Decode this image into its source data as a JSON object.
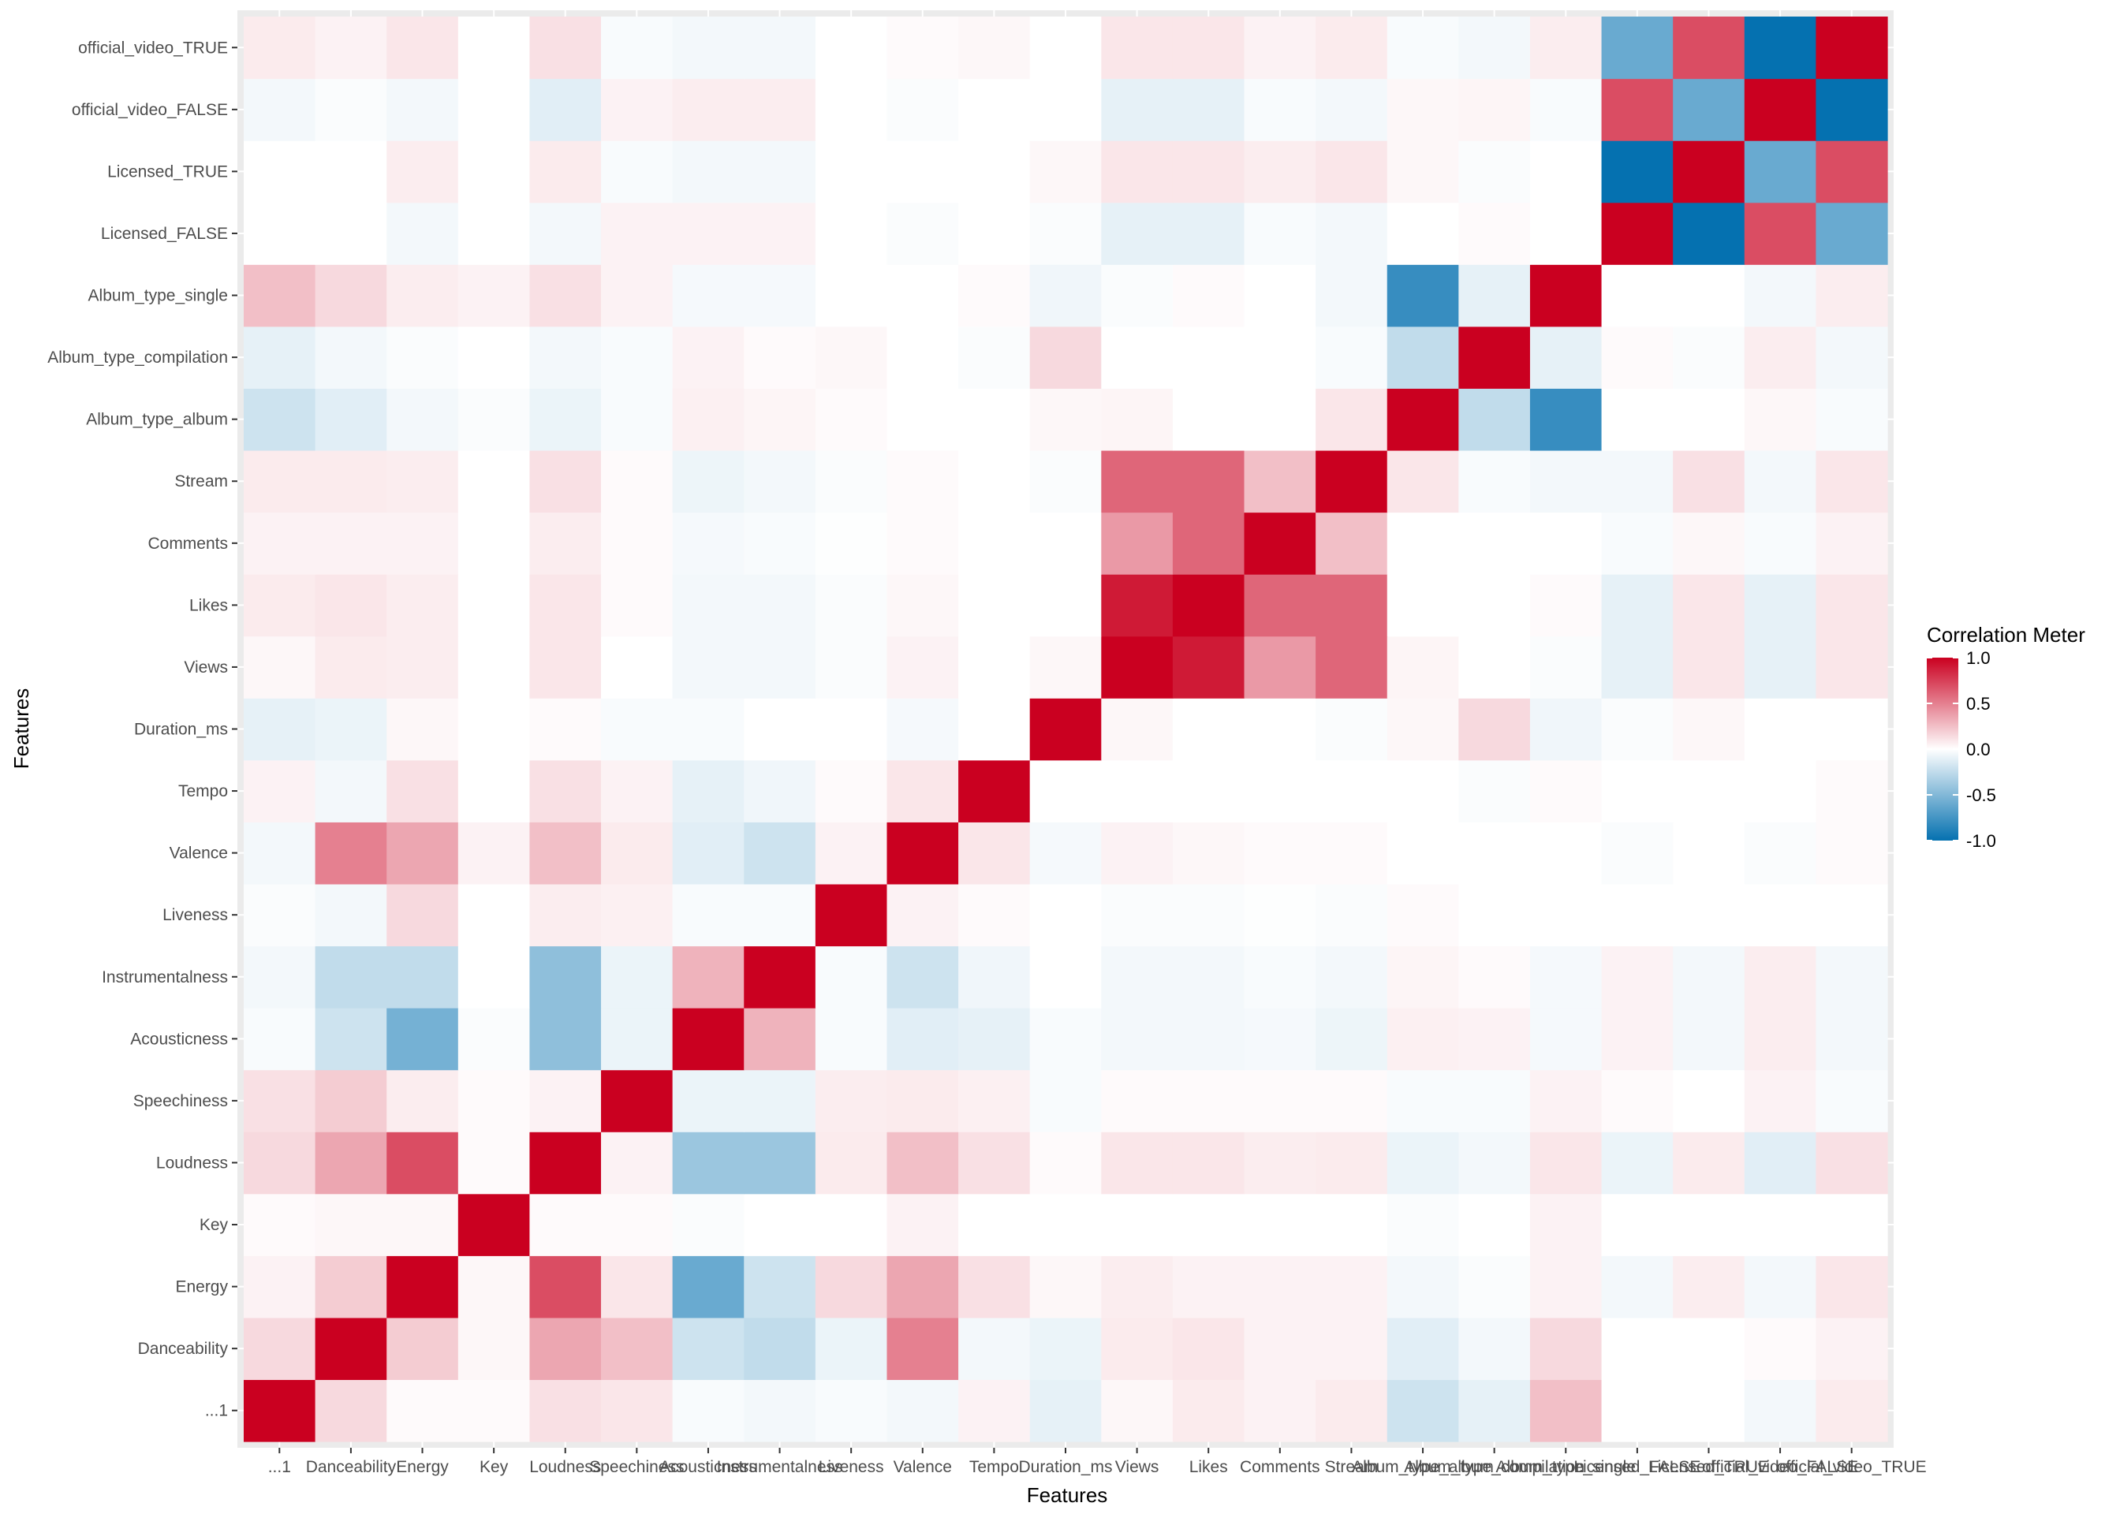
{
  "chart_data": {
    "type": "heatmap",
    "xlabel": "Features",
    "ylabel": "Features",
    "features": [
      "...1",
      "Danceability",
      "Energy",
      "Key",
      "Loudness",
      "Speechiness",
      "Acousticness",
      "Instrumentalness",
      "Liveness",
      "Valence",
      "Tempo",
      "Duration_ms",
      "Views",
      "Likes",
      "Comments",
      "Stream",
      "Album_type_album",
      "Album_type_compilation",
      "Album_type_single",
      "Licensed_FALSE",
      "Licensed_TRUE",
      "official_video_FALSE",
      "official_video_TRUE"
    ],
    "matrix": [
      [
        1.0,
        0.15,
        0.02,
        0.02,
        0.12,
        0.1,
        -0.03,
        -0.05,
        -0.03,
        -0.05,
        0.05,
        -0.1,
        0.03,
        0.08,
        0.05,
        0.08,
        -0.2,
        -0.1,
        0.25,
        0.0,
        0.0,
        -0.05,
        0.08
      ],
      [
        0.15,
        1.0,
        0.2,
        0.03,
        0.35,
        0.25,
        -0.2,
        -0.25,
        -0.08,
        0.5,
        -0.05,
        -0.08,
        0.08,
        0.1,
        0.05,
        0.05,
        -0.12,
        -0.05,
        0.15,
        0.0,
        0.0,
        0.02,
        0.05
      ],
      [
        0.05,
        0.2,
        1.0,
        0.03,
        0.7,
        0.1,
        -0.6,
        -0.2,
        0.15,
        0.35,
        0.12,
        0.03,
        0.07,
        0.05,
        0.05,
        0.05,
        -0.05,
        -0.02,
        0.05,
        -0.05,
        0.07,
        -0.05,
        0.1
      ],
      [
        0.02,
        0.03,
        0.03,
        1.0,
        0.02,
        0.02,
        -0.02,
        0.0,
        0.0,
        0.05,
        0.0,
        0.0,
        0.0,
        0.0,
        0.0,
        0.0,
        -0.02,
        0.0,
        0.05,
        0.0,
        0.0,
        0.0,
        0.0
      ],
      [
        0.15,
        0.35,
        0.7,
        0.02,
        1.0,
        0.05,
        -0.4,
        -0.4,
        0.08,
        0.25,
        0.12,
        0.02,
        0.1,
        0.1,
        0.07,
        0.08,
        -0.08,
        -0.05,
        0.1,
        -0.08,
        0.08,
        -0.12,
        0.12
      ],
      [
        0.12,
        0.2,
        0.07,
        0.02,
        0.05,
        1.0,
        -0.08,
        -0.08,
        0.07,
        0.08,
        0.06,
        -0.03,
        0.02,
        0.02,
        0.02,
        0.02,
        -0.03,
        -0.03,
        0.05,
        0.02,
        0.0,
        0.05,
        -0.03
      ],
      [
        -0.03,
        -0.2,
        -0.55,
        -0.02,
        -0.45,
        -0.08,
        1.0,
        0.3,
        -0.03,
        -0.12,
        -0.1,
        -0.03,
        -0.05,
        -0.05,
        -0.04,
        -0.07,
        0.06,
        0.05,
        -0.04,
        0.05,
        -0.05,
        0.07,
        -0.05
      ],
      [
        -0.05,
        -0.25,
        -0.25,
        0.0,
        -0.45,
        -0.08,
        0.3,
        1.0,
        -0.03,
        -0.2,
        -0.06,
        0.0,
        -0.05,
        -0.05,
        -0.03,
        -0.05,
        0.04,
        0.02,
        -0.04,
        0.05,
        -0.05,
        0.07,
        -0.05
      ],
      [
        -0.02,
        -0.05,
        0.15,
        0.0,
        0.07,
        0.06,
        -0.03,
        -0.03,
        1.0,
        0.05,
        0.02,
        0.0,
        -0.02,
        -0.02,
        -0.01,
        -0.02,
        0.02,
        0.0,
        0.0,
        0.0,
        0.0,
        0.0,
        0.0
      ],
      [
        -0.05,
        0.5,
        0.35,
        0.05,
        0.25,
        0.08,
        -0.12,
        -0.2,
        0.05,
        1.0,
        0.1,
        -0.04,
        0.05,
        0.03,
        0.02,
        0.02,
        0.0,
        0.0,
        0.0,
        -0.02,
        0.0,
        -0.02,
        0.02
      ],
      [
        0.05,
        -0.05,
        0.12,
        0.0,
        0.12,
        0.05,
        -0.1,
        -0.06,
        0.02,
        0.1,
        1.0,
        0.0,
        0.0,
        0.0,
        0.0,
        0.0,
        0.0,
        -0.02,
        0.02,
        0.0,
        0.0,
        0.0,
        0.02
      ],
      [
        -0.1,
        -0.08,
        0.03,
        0.0,
        0.02,
        -0.03,
        -0.03,
        0.0,
        0.0,
        -0.04,
        0.0,
        1.0,
        0.03,
        0.0,
        0.0,
        -0.02,
        0.03,
        0.15,
        -0.06,
        -0.02,
        0.03,
        0.0,
        0.0
      ],
      [
        0.03,
        0.08,
        0.07,
        0.0,
        0.1,
        0.0,
        -0.05,
        -0.05,
        -0.02,
        0.05,
        0.0,
        0.03,
        1.0,
        0.9,
        0.4,
        0.6,
        0.04,
        0.0,
        -0.02,
        -0.1,
        0.1,
        -0.1,
        0.1
      ],
      [
        0.08,
        0.1,
        0.07,
        0.0,
        0.1,
        0.02,
        -0.05,
        -0.05,
        -0.02,
        0.03,
        0.0,
        0.0,
        0.9,
        1.0,
        0.6,
        0.6,
        0.0,
        0.0,
        0.02,
        -0.1,
        0.1,
        -0.1,
        0.1
      ],
      [
        0.05,
        0.05,
        0.05,
        0.0,
        0.07,
        0.02,
        -0.04,
        -0.03,
        -0.01,
        0.02,
        0.0,
        0.0,
        0.4,
        0.6,
        1.0,
        0.25,
        0.0,
        0.0,
        0.0,
        -0.03,
        0.03,
        -0.03,
        0.05
      ],
      [
        0.08,
        0.08,
        0.07,
        0.0,
        0.12,
        0.02,
        -0.07,
        -0.05,
        -0.02,
        0.02,
        0.0,
        -0.02,
        0.6,
        0.6,
        0.25,
        1.0,
        0.1,
        -0.03,
        -0.05,
        -0.05,
        0.12,
        -0.05,
        0.1
      ],
      [
        -0.2,
        -0.12,
        -0.05,
        -0.02,
        -0.08,
        -0.03,
        0.06,
        0.04,
        0.02,
        0.0,
        0.0,
        0.03,
        0.04,
        0.0,
        0.0,
        0.1,
        1.0,
        -0.25,
        -0.8,
        0.0,
        0.0,
        0.03,
        -0.03
      ],
      [
        -0.1,
        -0.05,
        -0.02,
        0.0,
        -0.05,
        -0.03,
        0.05,
        0.02,
        0.03,
        0.0,
        -0.02,
        0.15,
        0.0,
        0.0,
        0.0,
        -0.03,
        -0.25,
        1.0,
        -0.1,
        0.02,
        -0.02,
        0.07,
        -0.05
      ],
      [
        0.25,
        0.15,
        0.07,
        0.05,
        0.12,
        0.05,
        -0.04,
        -0.04,
        0.0,
        0.0,
        0.02,
        -0.06,
        -0.02,
        0.02,
        0.0,
        -0.05,
        -0.8,
        -0.1,
        1.0,
        0.0,
        0.0,
        -0.05,
        0.07
      ],
      [
        0.0,
        0.0,
        -0.05,
        0.0,
        -0.05,
        0.05,
        0.05,
        0.05,
        0.0,
        -0.02,
        0.0,
        -0.02,
        -0.1,
        -0.1,
        -0.03,
        -0.05,
        0.0,
        0.02,
        0.0,
        1.0,
        -1.0,
        0.7,
        -0.6
      ],
      [
        0.0,
        0.0,
        0.07,
        0.0,
        0.08,
        -0.03,
        -0.05,
        -0.05,
        0.0,
        0.0,
        0.0,
        0.03,
        0.1,
        0.1,
        0.07,
        0.1,
        0.03,
        -0.02,
        0.0,
        -1.0,
        1.0,
        -0.6,
        0.7
      ],
      [
        -0.05,
        -0.02,
        -0.05,
        0.0,
        -0.12,
        0.05,
        0.07,
        0.07,
        0.0,
        -0.02,
        0.0,
        0.0,
        -0.1,
        -0.1,
        -0.03,
        -0.05,
        0.03,
        0.04,
        -0.03,
        0.7,
        -0.6,
        1.0,
        -1.0
      ],
      [
        0.08,
        0.05,
        0.1,
        0.0,
        0.12,
        -0.03,
        -0.05,
        -0.05,
        0.0,
        0.02,
        0.03,
        0.0,
        0.1,
        0.1,
        0.05,
        0.08,
        -0.03,
        -0.05,
        0.07,
        -0.6,
        0.7,
        -1.0,
        1.0
      ]
    ],
    "legend": {
      "title": "Correlation Meter",
      "breaks": [
        "1.0",
        "0.5",
        "0.0",
        "-0.5",
        "-1.0"
      ],
      "low_color": "#0571b0",
      "mid_color": "#ffffff",
      "high_color": "#ca0020",
      "placement": "right"
    },
    "panel_background": "#ebebeb",
    "grid": true
  }
}
